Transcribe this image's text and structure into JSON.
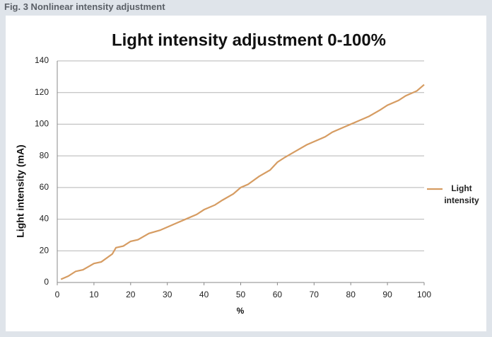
{
  "figure_caption": "Fig. 3 Nonlinear intensity adjustment",
  "chart_data": {
    "type": "line",
    "title": "Light intensity adjustment 0-100%",
    "x_label": "%",
    "y_label": "Light intensity (mA)",
    "x": [
      1,
      3,
      5,
      7,
      10,
      12,
      15,
      16,
      18,
      20,
      22,
      25,
      28,
      30,
      33,
      35,
      38,
      40,
      43,
      45,
      48,
      50,
      52,
      55,
      58,
      60,
      62,
      65,
      68,
      70,
      73,
      75,
      78,
      80,
      83,
      85,
      88,
      90,
      93,
      95,
      98,
      100
    ],
    "series": [
      {
        "name": "Light intensity",
        "color": "#d69c62",
        "values": [
          2,
          4,
          7,
          8,
          12,
          13,
          18,
          22,
          23,
          26,
          27,
          31,
          33,
          35,
          38,
          40,
          43,
          46,
          49,
          52,
          56,
          60,
          62,
          67,
          71,
          76,
          79,
          83,
          87,
          89,
          92,
          95,
          98,
          100,
          103,
          105,
          109,
          112,
          115,
          118,
          121,
          125
        ]
      }
    ],
    "xlim": [
      0,
      100
    ],
    "xticks": [
      0,
      10,
      20,
      30,
      40,
      50,
      60,
      70,
      80,
      90,
      100
    ],
    "ylim": [
      0,
      140
    ],
    "yticks": [
      0,
      20,
      40,
      60,
      80,
      100,
      120,
      140
    ],
    "grid": true,
    "legend": "right"
  }
}
